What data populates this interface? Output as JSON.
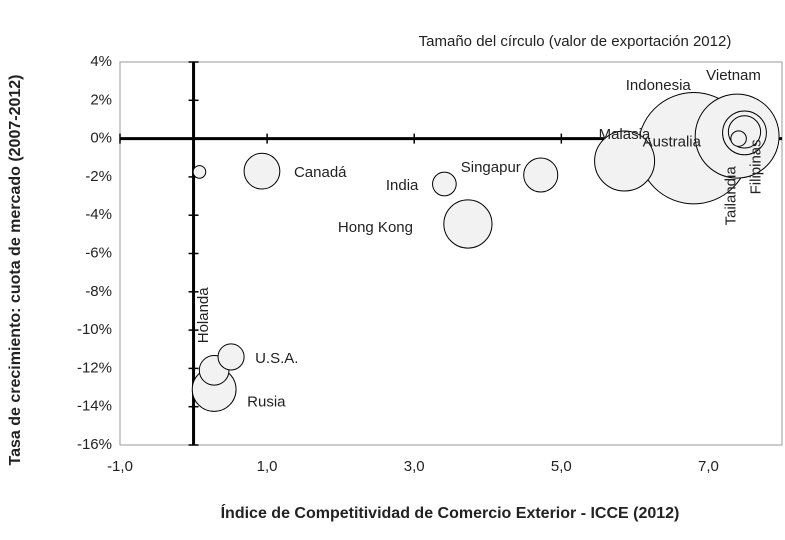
{
  "chart_data": {
    "type": "bubble",
    "annotation": "Tamaño del círculo (valor de exportación 2012)",
    "xlabel": "Índice de Competitividad de Comercio Exterior - ICCE (2012)",
    "ylabel": "Tasa de crecimiento: cuota de mercado (2007-2012)",
    "xlim": [
      -1,
      8
    ],
    "ylim": [
      -16,
      4
    ],
    "xticks": [
      {
        "value": -1,
        "label": "-1,0"
      },
      {
        "value": 1,
        "label": "1,0"
      },
      {
        "value": 3,
        "label": "3,0"
      },
      {
        "value": 5,
        "label": "5,0"
      },
      {
        "value": 7,
        "label": "7,0"
      }
    ],
    "yticks": [
      {
        "value": 4,
        "label": "4%"
      },
      {
        "value": 2,
        "label": "2%"
      },
      {
        "value": 0,
        "label": "0%"
      },
      {
        "value": -2,
        "label": "-2%"
      },
      {
        "value": -4,
        "label": "-4%"
      },
      {
        "value": -6,
        "label": "-6%"
      },
      {
        "value": -8,
        "label": "-8%"
      },
      {
        "value": -10,
        "label": "-10%"
      },
      {
        "value": -12,
        "label": "-12%"
      },
      {
        "value": -14,
        "label": "-14%"
      },
      {
        "value": -16,
        "label": "-16%"
      }
    ],
    "color": "#f2f2f2",
    "points": [
      {
        "label": null,
        "x": 0.08,
        "y": -1.74,
        "size": 4
      },
      {
        "label": "Canadá",
        "x": 0.93,
        "y": -1.7,
        "size": 32
      },
      {
        "label": "India",
        "x": 3.41,
        "y": -2.37,
        "size": 14
      },
      {
        "label": "Singapur",
        "x": 4.72,
        "y": -1.9,
        "size": 29
      },
      {
        "label": "Hong Kong",
        "x": 3.73,
        "y": -4.46,
        "size": 58
      },
      {
        "label": "Malasia",
        "x": 5.86,
        "y": -1.17,
        "size": 90
      },
      {
        "label": "Indonesia",
        "x": 6.8,
        "y": -0.5,
        "size": 310
      },
      {
        "label": "Vietnam",
        "x": 7.39,
        "y": 0.13,
        "size": 176
      },
      {
        "label": "Filipinas",
        "x": 7.49,
        "y": 0.3,
        "size": 48
      },
      {
        "label": "Tailandia",
        "x": 7.49,
        "y": 0.35,
        "size": 26
      },
      {
        "label": "Australia",
        "x": 7.41,
        "y": 0.0,
        "size": 6
      },
      {
        "label": "U.S.A.",
        "x": 0.51,
        "y": -11.4,
        "size": 17
      },
      {
        "label": "Holanda",
        "x": 0.28,
        "y": -12.1,
        "size": 22
      },
      {
        "label": "Rusia",
        "x": 0.28,
        "y": -13.1,
        "size": 48
      }
    ]
  }
}
